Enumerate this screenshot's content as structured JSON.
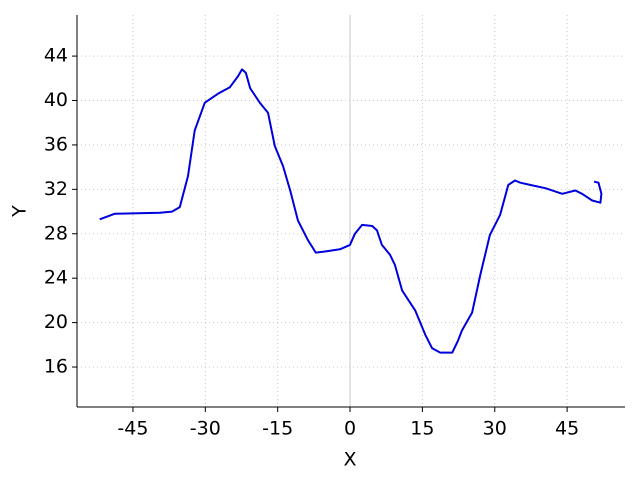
{
  "chart_data": {
    "type": "line",
    "x_label": "X",
    "y_label": "Y",
    "x": [
      -51.9,
      -48.8,
      -39.4,
      -36.9,
      -35.3,
      -33.6,
      -32.2,
      -30.1,
      -27.4,
      -24.9,
      -23.2,
      -22.4,
      -21.6,
      -20.7,
      -18.7,
      -17.0,
      -15.6,
      -13.9,
      -12.4,
      -10.8,
      -8.7,
      -7.1,
      -5.2,
      -2.1,
      0,
      1.0,
      2.5,
      4.6,
      5.6,
      6.6,
      8.3,
      9.3,
      10.8,
      13.5,
      15.6,
      17.0,
      18.7,
      21.2,
      22.4,
      23.2,
      25.3,
      27.0,
      29.0,
      31.1,
      32.8,
      34.2,
      35.3,
      37.3,
      40.5,
      44.0,
      46.7,
      48.1,
      50.2,
      51.9,
      52.1,
      51.5,
      50.6
    ],
    "series": [
      {
        "color": "#0000dd",
        "values": [
          29.3,
          29.8,
          29.9,
          30.0,
          30.4,
          33.2,
          37.3,
          39.8,
          40.6,
          41.2,
          42.2,
          42.8,
          42.5,
          41.1,
          39.8,
          38.9,
          35.9,
          34.1,
          31.9,
          29.2,
          27.4,
          26.3,
          26.4,
          26.6,
          27.0,
          28.0,
          28.8,
          28.7,
          28.3,
          27.0,
          26.1,
          25.2,
          22.9,
          21.1,
          18.9,
          17.7,
          17.3,
          17.3,
          18.4,
          19.3,
          20.9,
          24.3,
          27.9,
          29.7,
          32.4,
          32.8,
          32.6,
          32.4,
          32.1,
          31.6,
          31.9,
          31.6,
          31.0,
          30.8,
          31.6,
          32.6,
          32.7
        ]
      }
    ],
    "xlim": [
      -56.6,
      57.0
    ],
    "ylim": [
      12.4,
      47.7
    ],
    "xticks": [
      -45,
      -30,
      -15,
      0,
      15,
      30,
      45
    ],
    "yticks": [
      16,
      20,
      24,
      28,
      32,
      36,
      40,
      44
    ],
    "grid": true
  }
}
